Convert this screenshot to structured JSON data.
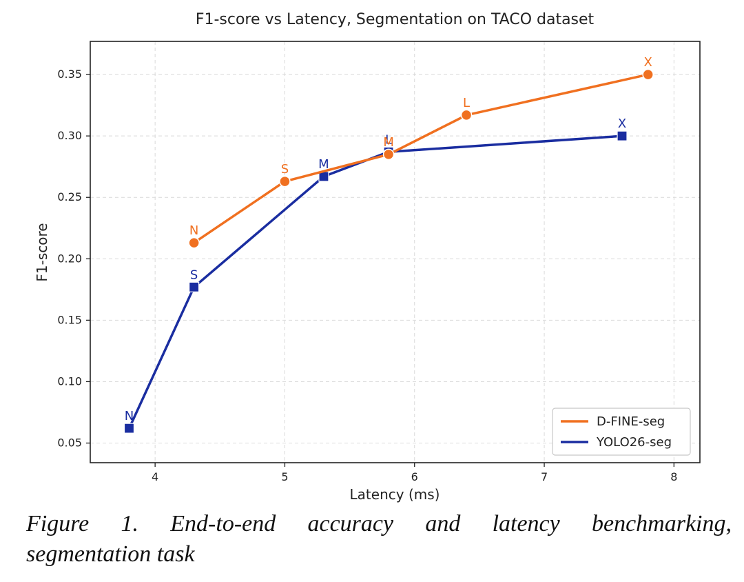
{
  "chart_data": {
    "type": "line",
    "title": "F1-score vs Latency, Segmentation on TACO dataset",
    "xlabel": "Latency (ms)",
    "ylabel": "F1-score",
    "xlim": [
      3.5,
      8.2
    ],
    "ylim": [
      0.034,
      0.377
    ],
    "xticks": [
      4,
      5,
      6,
      7,
      8
    ],
    "xtick_labels": [
      "4",
      "5",
      "6",
      "7",
      "8"
    ],
    "yticks": [
      0.05,
      0.1,
      0.15,
      0.2,
      0.25,
      0.3,
      0.35
    ],
    "ytick_labels": [
      "0.05",
      "0.10",
      "0.15",
      "0.20",
      "0.25",
      "0.30",
      "0.35"
    ],
    "grid": true,
    "legend_position": "lower-right",
    "series": [
      {
        "name": "D-FINE-seg",
        "color": "#F07020",
        "marker": "circle",
        "x": [
          4.3,
          5.0,
          5.8,
          6.4,
          7.8
        ],
        "y": [
          0.213,
          0.263,
          0.285,
          0.317,
          0.35
        ],
        "point_labels": [
          "N",
          "S",
          "M",
          "L",
          "X"
        ]
      },
      {
        "name": "YOLO26-seg",
        "color": "#1A2DA0",
        "marker": "square",
        "x": [
          3.8,
          4.3,
          5.3,
          5.8,
          7.6
        ],
        "y": [
          0.062,
          0.177,
          0.267,
          0.287,
          0.3
        ],
        "point_labels": [
          "N",
          "S",
          "M",
          "L",
          "X"
        ]
      }
    ]
  },
  "caption": {
    "line1": "Figure 1. End-to-end accuracy and latency benchmarking,",
    "line2": "segmentation task"
  }
}
